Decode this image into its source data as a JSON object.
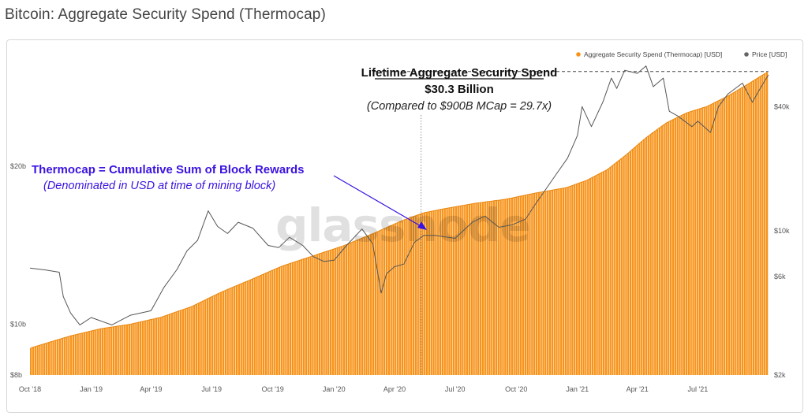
{
  "page": {
    "title": "Bitcoin: Aggregate Security Spend (Thermocap)"
  },
  "colors": {
    "thermocap": "#f7931a",
    "thermocap_line": "#e8870f",
    "price": "#555555",
    "arrow": "#3b12e0",
    "annotation_blue": "#3b12e0"
  },
  "watermark": "glassnode",
  "chart_data": {
    "type": "bar",
    "title": "",
    "xlabel": "",
    "ylabel": "",
    "legend": {
      "placement": "top-right",
      "items": [
        {
          "label": "Aggregate Security Spend (Thermocap) [USD]",
          "color": "#f7931a"
        },
        {
          "label": "Price [USD]",
          "color": "#666666"
        }
      ]
    },
    "x_range": [
      "2018-10-01",
      "2021-10-20"
    ],
    "x_ticks": [
      {
        "date": "2018-10-01",
        "label": "Oct '18"
      },
      {
        "date": "2019-01-01",
        "label": "Jan '19"
      },
      {
        "date": "2019-04-01",
        "label": "Apr '19"
      },
      {
        "date": "2019-07-01",
        "label": "Jul '19"
      },
      {
        "date": "2019-10-01",
        "label": "Oct '19"
      },
      {
        "date": "2020-01-01",
        "label": "Jan '20"
      },
      {
        "date": "2020-04-01",
        "label": "Apr '20"
      },
      {
        "date": "2020-07-01",
        "label": "Jul '20"
      },
      {
        "date": "2020-10-01",
        "label": "Oct '20"
      },
      {
        "date": "2021-01-01",
        "label": "Jan '21"
      },
      {
        "date": "2021-04-01",
        "label": "Apr '21"
      },
      {
        "date": "2021-07-01",
        "label": "Jul '21"
      }
    ],
    "left_axis": {
      "scale": "log",
      "range": [
        8,
        32
      ],
      "ticks": [
        {
          "value": 8,
          "label": "$8b"
        },
        {
          "value": 10,
          "label": "$10b"
        },
        {
          "value": 20,
          "label": "$20b"
        }
      ]
    },
    "right_axis": {
      "scale": "log",
      "range": [
        2000,
        68000
      ],
      "ticks": [
        {
          "value": 2000,
          "label": "$2k"
        },
        {
          "value": 6000,
          "label": "$6k"
        },
        {
          "value": 10000,
          "label": "$10k"
        },
        {
          "value": 40000,
          "label": "$40k"
        }
      ]
    },
    "series": [
      {
        "name": "Aggregate Security Spend (Thermocap) [USD]",
        "axis": "left",
        "unit": "billion USD",
        "x": [
          "2018-10-01",
          "2018-12-01",
          "2019-01-15",
          "2019-03-01",
          "2019-04-15",
          "2019-06-01",
          "2019-07-15",
          "2019-09-01",
          "2019-10-15",
          "2019-12-01",
          "2020-01-15",
          "2020-03-01",
          "2020-04-15",
          "2020-05-15",
          "2020-06-15",
          "2020-08-01",
          "2020-09-15",
          "2020-11-01",
          "2020-12-15",
          "2021-01-15",
          "2021-02-15",
          "2021-03-15",
          "2021-04-15",
          "2021-05-15",
          "2021-06-15",
          "2021-07-15",
          "2021-08-15",
          "2021-09-15",
          "2021-10-15"
        ],
        "y": [
          9.0,
          9.5,
          9.8,
          10.0,
          10.3,
          10.8,
          11.5,
          12.2,
          12.9,
          13.5,
          14.1,
          14.9,
          15.8,
          16.3,
          16.6,
          17.0,
          17.3,
          17.8,
          18.2,
          18.8,
          19.7,
          21.0,
          22.7,
          24.2,
          25.3,
          26.0,
          27.2,
          28.7,
          30.3
        ]
      },
      {
        "name": "Price [USD]",
        "axis": "right",
        "unit": "USD",
        "x": [
          "2018-10-01",
          "2018-10-25",
          "2018-11-14",
          "2018-11-20",
          "2018-12-01",
          "2018-12-15",
          "2019-01-01",
          "2019-02-01",
          "2019-03-01",
          "2019-04-01",
          "2019-04-20",
          "2019-05-10",
          "2019-05-25",
          "2019-06-10",
          "2019-06-26",
          "2019-07-10",
          "2019-07-25",
          "2019-08-10",
          "2019-09-01",
          "2019-09-24",
          "2019-10-10",
          "2019-10-26",
          "2019-11-15",
          "2019-12-01",
          "2019-12-17",
          "2020-01-01",
          "2020-01-20",
          "2020-02-12",
          "2020-02-28",
          "2020-03-12",
          "2020-03-20",
          "2020-04-01",
          "2020-04-15",
          "2020-05-01",
          "2020-05-15",
          "2020-06-01",
          "2020-07-01",
          "2020-07-27",
          "2020-08-15",
          "2020-09-05",
          "2020-09-25",
          "2020-10-15",
          "2020-10-30",
          "2020-11-15",
          "2020-12-01",
          "2020-12-17",
          "2021-01-01",
          "2021-01-08",
          "2021-01-22",
          "2021-02-08",
          "2021-02-21",
          "2021-03-01",
          "2021-03-13",
          "2021-04-01",
          "2021-04-14",
          "2021-04-25",
          "2021-05-10",
          "2021-05-19",
          "2021-06-01",
          "2021-06-22",
          "2021-07-01",
          "2021-07-20",
          "2021-08-01",
          "2021-08-15",
          "2021-09-06",
          "2021-09-21",
          "2021-10-01",
          "2021-10-15"
        ],
        "y": [
          6600,
          6450,
          6300,
          4800,
          4000,
          3500,
          3800,
          3500,
          3900,
          4100,
          5300,
          6500,
          8000,
          9000,
          12500,
          10500,
          9700,
          11000,
          10300,
          8500,
          8300,
          9300,
          8500,
          7500,
          7100,
          7200,
          8500,
          10200,
          8700,
          5000,
          6200,
          6700,
          6900,
          8800,
          9500,
          9500,
          9200,
          11000,
          11800,
          10400,
          10700,
          11400,
          13500,
          16000,
          19000,
          22500,
          29000,
          40000,
          32000,
          42000,
          55000,
          49000,
          60000,
          58000,
          63000,
          50000,
          55000,
          38000,
          36000,
          32000,
          34000,
          30000,
          40000,
          46000,
          52000,
          42000,
          48000,
          57000
        ]
      }
    ],
    "annotations": [
      {
        "id": "lifetime_title",
        "text": "Lifetime Aggregate Security Spend"
      },
      {
        "id": "lifetime_value",
        "text": "$30.3 Billion"
      },
      {
        "id": "lifetime_note",
        "text": "(Compared to $900B MCap = 29.7x)"
      },
      {
        "id": "thermo_title",
        "text": "Thermocap = Cumulative Sum of Block Rewards"
      },
      {
        "id": "thermo_note",
        "text": "(Denominated in USD at time of mining block)"
      }
    ],
    "reference_line": {
      "axis": "left",
      "value": 30.3,
      "style": "dashed"
    },
    "vertical_marker": {
      "date": "2020-05-11",
      "style": "dotted"
    },
    "grid": false
  }
}
